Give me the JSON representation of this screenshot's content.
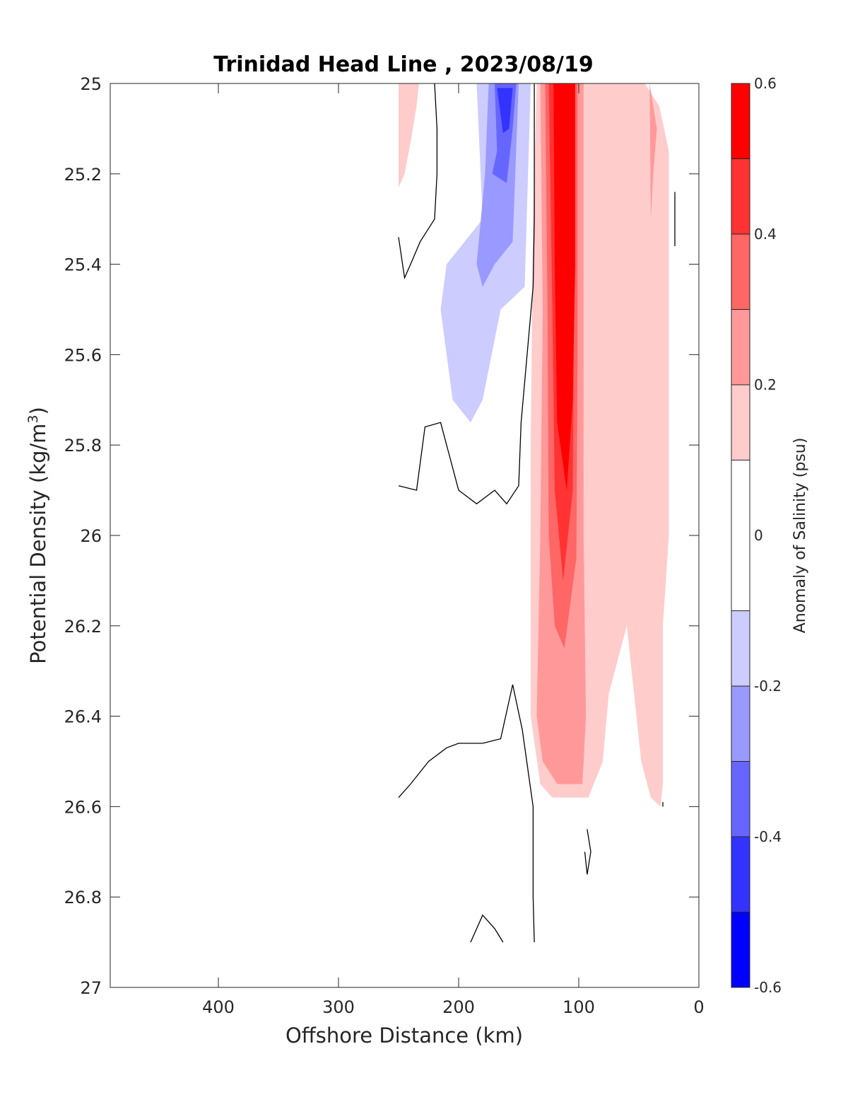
{
  "chart_data": {
    "type": "contourf",
    "title": "Trinidad Head Line , 2023/08/19",
    "xlabel": "Offshore Distance (km)",
    "ylabel_main": "Potential Density (kg/m",
    "ylabel_sup": "3",
    "ylabel_close": ")",
    "colorbar_label": "Anomaly of Salinity (psu)",
    "x_reversed": true,
    "y_reversed": true,
    "xlim": [
      0,
      490
    ],
    "ylim": [
      25,
      27
    ],
    "xticks": [
      {
        "value": 400,
        "label": "400"
      },
      {
        "value": 300,
        "label": "300"
      },
      {
        "value": 200,
        "label": "200"
      },
      {
        "value": 100,
        "label": "100"
      },
      {
        "value": 0,
        "label": "0"
      }
    ],
    "yticks": [
      {
        "value": 25,
        "label": "25"
      },
      {
        "value": 25.2,
        "label": "25.2"
      },
      {
        "value": 25.4,
        "label": "25.4"
      },
      {
        "value": 25.6,
        "label": "25.6"
      },
      {
        "value": 25.8,
        "label": "25.8"
      },
      {
        "value": 26,
        "label": "26"
      },
      {
        "value": 26.2,
        "label": "26.2"
      },
      {
        "value": 26.4,
        "label": "26.4"
      },
      {
        "value": 26.6,
        "label": "26.6"
      },
      {
        "value": 26.8,
        "label": "26.8"
      },
      {
        "value": 27,
        "label": "27"
      }
    ],
    "colorbar": {
      "range": [
        -0.6,
        0.6
      ],
      "levels": [
        -0.6,
        -0.5,
        -0.4,
        -0.3,
        -0.2,
        -0.1,
        0.1,
        0.2,
        0.3,
        0.4,
        0.5,
        0.6
      ],
      "bands": [
        {
          "from": -0.6,
          "to": -0.5,
          "color": "#0000ff"
        },
        {
          "from": -0.5,
          "to": -0.4,
          "color": "#3333ff"
        },
        {
          "from": -0.4,
          "to": -0.3,
          "color": "#6666ff"
        },
        {
          "from": -0.3,
          "to": -0.2,
          "color": "#9999ff"
        },
        {
          "from": -0.2,
          "to": -0.1,
          "color": "#ccccff"
        },
        {
          "from": -0.1,
          "to": 0.1,
          "color": "#ffffff"
        },
        {
          "from": 0.1,
          "to": 0.2,
          "color": "#ffcccc"
        },
        {
          "from": 0.2,
          "to": 0.3,
          "color": "#ff9999"
        },
        {
          "from": 0.3,
          "to": 0.4,
          "color": "#ff6666"
        },
        {
          "from": 0.4,
          "to": 0.5,
          "color": "#ff3333"
        },
        {
          "from": 0.5,
          "to": 0.6,
          "color": "#ff0000"
        }
      ],
      "ticks": [
        {
          "value": 0.6,
          "label": "0.6"
        },
        {
          "value": 0.4,
          "label": "0.4"
        },
        {
          "value": 0.2,
          "label": "0.2"
        },
        {
          "value": 0,
          "label": "0"
        },
        {
          "value": -0.2,
          "label": "-0.2"
        },
        {
          "value": -0.4,
          "label": "-0.4"
        },
        {
          "value": -0.6,
          "label": "-0.6"
        }
      ]
    },
    "filled_regions": [
      {
        "level": 0.15,
        "color": "#ffcccc",
        "points": [
          [
            250,
            25
          ],
          [
            233,
            25
          ],
          [
            235,
            25.05
          ],
          [
            240,
            25.13
          ],
          [
            245,
            25.2
          ],
          [
            250,
            25.23
          ]
        ]
      },
      {
        "level": 0.15,
        "color": "#ffcccc",
        "points": [
          [
            55,
            25
          ],
          [
            45,
            25
          ],
          [
            33,
            25.05
          ],
          [
            25,
            25.15
          ],
          [
            25,
            25.3
          ],
          [
            25,
            26.0
          ],
          [
            30,
            26.2
          ],
          [
            30,
            26.45
          ],
          [
            30,
            26.55
          ],
          [
            32,
            26.6
          ],
          [
            40,
            26.58
          ],
          [
            48,
            26.5
          ],
          [
            60,
            26.2
          ],
          [
            65,
            26.0
          ],
          [
            68,
            25.7
          ],
          [
            70,
            25.55
          ],
          [
            72,
            25.4
          ],
          [
            75,
            25.2
          ],
          [
            78,
            25.0
          ]
        ]
      },
      {
        "level": 0.15,
        "color": "#ffcccc",
        "points": [
          [
            135,
            25
          ],
          [
            138,
            25.3
          ],
          [
            140,
            25.8
          ],
          [
            140,
            26.4
          ],
          [
            132,
            26.55
          ],
          [
            122,
            26.58
          ],
          [
            100,
            26.58
          ],
          [
            92,
            26.58
          ],
          [
            80,
            26.5
          ],
          [
            75,
            26.35
          ],
          [
            60,
            26.2
          ],
          [
            52,
            25.9
          ],
          [
            40,
            25.6
          ],
          [
            35,
            25.35
          ],
          [
            40,
            25.05
          ],
          [
            45,
            25
          ]
        ]
      },
      {
        "level": 0.25,
        "color": "#ff9999",
        "points": [
          [
            132,
            25
          ],
          [
            130,
            25.5
          ],
          [
            132,
            26.0
          ],
          [
            135,
            26.4
          ],
          [
            130,
            26.5
          ],
          [
            118,
            26.55
          ],
          [
            108,
            26.55
          ],
          [
            97,
            26.55
          ],
          [
            94,
            26.4
          ],
          [
            95,
            26.2
          ],
          [
            96,
            26.0
          ],
          [
            96,
            25.5
          ],
          [
            96,
            25.0
          ]
        ]
      },
      {
        "level": 0.25,
        "color": "#ff9999",
        "points": [
          [
            41,
            25.0
          ],
          [
            38,
            25.05
          ],
          [
            35,
            25.1
          ],
          [
            38,
            25.2
          ],
          [
            40,
            25.3
          ]
        ]
      },
      {
        "level": 0.35,
        "color": "#ff6666",
        "points": [
          [
            128,
            25
          ],
          [
            126,
            25.5
          ],
          [
            125,
            26.0
          ],
          [
            120,
            26.2
          ],
          [
            112,
            26.25
          ],
          [
            102,
            26.05
          ],
          [
            101,
            25.6
          ],
          [
            101,
            25.0
          ]
        ]
      },
      {
        "level": 0.45,
        "color": "#ff3333",
        "points": [
          [
            125,
            25
          ],
          [
            122,
            25.5
          ],
          [
            120,
            25.9
          ],
          [
            113,
            26.1
          ],
          [
            105,
            25.9
          ],
          [
            104,
            25.5
          ],
          [
            104,
            25.0
          ]
        ]
      },
      {
        "level": 0.55,
        "color": "#ff0000",
        "points": [
          [
            121,
            25
          ],
          [
            120,
            25.4
          ],
          [
            118,
            25.75
          ],
          [
            110,
            25.9
          ],
          [
            105,
            25.7
          ],
          [
            103,
            25.4
          ],
          [
            103,
            25.0
          ]
        ]
      },
      {
        "level": -0.15,
        "color": "#ccccff",
        "points": [
          [
            185,
            25
          ],
          [
            180,
            25.3
          ],
          [
            210,
            25.4
          ],
          [
            215,
            25.5
          ],
          [
            205,
            25.7
          ],
          [
            190,
            25.75
          ],
          [
            180,
            25.7
          ],
          [
            165,
            25.5
          ],
          [
            145,
            25.45
          ],
          [
            140,
            25.0
          ]
        ]
      },
      {
        "level": -0.25,
        "color": "#9999ff",
        "points": [
          [
            175,
            25
          ],
          [
            178,
            25.2
          ],
          [
            185,
            25.4
          ],
          [
            180,
            25.45
          ],
          [
            170,
            25.4
          ],
          [
            155,
            25.35
          ],
          [
            150,
            25.0
          ]
        ]
      },
      {
        "level": -0.35,
        "color": "#6666ff",
        "points": [
          [
            170,
            25
          ],
          [
            168,
            25.15
          ],
          [
            172,
            25.2
          ],
          [
            160,
            25.22
          ],
          [
            155,
            25.1
          ],
          [
            152,
            25.0
          ]
        ]
      },
      {
        "level": -0.45,
        "color": "#3333ff",
        "points": [
          [
            168,
            25.01
          ],
          [
            163,
            25.11
          ],
          [
            158,
            25.1
          ],
          [
            155,
            25.01
          ]
        ]
      }
    ],
    "zero_contours": [
      [
        [
          250,
          25.34
        ],
        [
          245,
          25.43
        ],
        [
          240,
          25.4
        ],
        [
          232,
          25.35
        ],
        [
          220,
          25.3
        ],
        [
          218,
          25.2
        ],
        [
          218,
          25.1
        ],
        [
          220,
          25.0
        ]
      ],
      [
        [
          250,
          25.89
        ],
        [
          235,
          25.9
        ],
        [
          228,
          25.76
        ],
        [
          215,
          25.75
        ],
        [
          200,
          25.9
        ],
        [
          185,
          25.93
        ],
        [
          170,
          25.9
        ],
        [
          160,
          25.93
        ],
        [
          150,
          25.89
        ],
        [
          148,
          25.75
        ],
        [
          143,
          25.6
        ],
        [
          138,
          25.45
        ],
        [
          137,
          25.3
        ],
        [
          137,
          25.0
        ]
      ],
      [
        [
          250,
          26.58
        ],
        [
          240,
          26.55
        ],
        [
          225,
          26.5
        ],
        [
          210,
          26.47
        ],
        [
          200,
          26.46
        ],
        [
          180,
          26.46
        ],
        [
          165,
          26.45
        ],
        [
          155,
          26.33
        ],
        [
          147,
          26.43
        ],
        [
          138,
          26.6
        ],
        [
          138,
          26.8
        ],
        [
          137,
          26.9
        ]
      ],
      [
        [
          190,
          26.9
        ],
        [
          180,
          26.84
        ],
        [
          170,
          26.87
        ],
        [
          163,
          26.9
        ]
      ],
      [
        [
          93,
          26.65
        ],
        [
          90,
          26.7
        ],
        [
          93,
          26.75
        ],
        [
          95,
          26.7
        ]
      ],
      [
        [
          20,
          25.24
        ],
        [
          20,
          25.3
        ],
        [
          20,
          25.36
        ]
      ],
      [
        [
          30,
          26.59
        ],
        [
          30,
          26.6
        ]
      ]
    ]
  }
}
